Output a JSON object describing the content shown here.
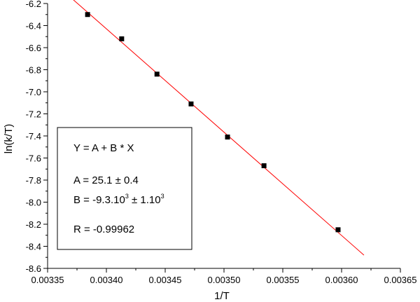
{
  "chart_data": {
    "type": "scatter",
    "title": "",
    "xlabel": "1/T",
    "ylabel": "ln(k/T)",
    "xlim": [
      0.00335,
      0.00365
    ],
    "ylim": [
      -8.6,
      -6.2
    ],
    "x_ticks": [
      "0.00335",
      "0.00340",
      "0.00345",
      "0.00350",
      "0.00355",
      "0.00360",
      "0.00365"
    ],
    "y_ticks": [
      "-6.2",
      "-6.4",
      "-6.6",
      "-6.8",
      "-7.0",
      "-7.2",
      "-7.4",
      "-7.6",
      "-7.8",
      "-8.0",
      "-8.2",
      "-8.4",
      "-8.6"
    ],
    "grid": false,
    "series": [
      {
        "marker": "square",
        "color": "#000000",
        "x": [
          0.003384,
          0.003413,
          0.003443,
          0.003472,
          0.003503,
          0.003534,
          0.003597
        ],
        "y": [
          -6.3,
          -6.52,
          -6.84,
          -7.11,
          -7.41,
          -7.67,
          -8.25
        ]
      }
    ],
    "fit_line": {
      "color": "#ff0000",
      "x": [
        0.003368,
        0.003619
      ],
      "y": [
        -6.13,
        -8.48
      ]
    },
    "legend": {
      "placement": "left",
      "equation": "Y = A + B * X",
      "a_line": "A = 25.1 ± 0.4",
      "b_prefix": "B = -9.3.10",
      "b_exp1": "3",
      "b_mid": " ± 1.10",
      "b_exp2": "3",
      "r_line": "R = -0.99962"
    }
  }
}
